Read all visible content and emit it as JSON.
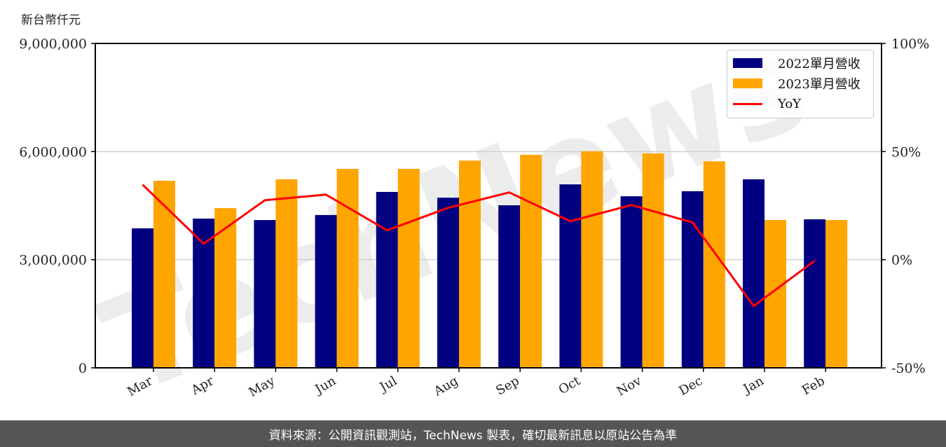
{
  "unit_label": "新台幣仟元",
  "footer": {
    "text": "資料來源：公開資訊觀測站，TechNews 製表，確切最新訊息以原站公告為準"
  },
  "watermark": "TechNews",
  "legend": [
    {
      "label": "2022單月營收",
      "color": "#000080",
      "kind": "bar"
    },
    {
      "label": "2023單月營收",
      "color": "#FFA500",
      "kind": "bar"
    },
    {
      "label": "YoY",
      "color": "#FF0000",
      "kind": "line"
    }
  ],
  "chart_data": {
    "type": "bar",
    "title": "",
    "xlabel": "",
    "ylabel": "新台幣仟元",
    "y2label": "",
    "categories": [
      "Mar",
      "Apr",
      "May",
      "Jun",
      "Jul",
      "Aug",
      "Sep",
      "Oct",
      "Nov",
      "Dec",
      "Jan",
      "Feb"
    ],
    "series": [
      {
        "name": "2022單月營收",
        "type": "bar",
        "axis": "left",
        "color": "#000080",
        "values": [
          3870000,
          4140000,
          4100000,
          4240000,
          4880000,
          4720000,
          4510000,
          5090000,
          4760000,
          4900000,
          5230000,
          4120000
        ]
      },
      {
        "name": "2023單月營收",
        "type": "bar",
        "axis": "left",
        "color": "#FFA500",
        "values": [
          5190000,
          4430000,
          5230000,
          5520000,
          5520000,
          5750000,
          5910000,
          6010000,
          5950000,
          5730000,
          4100000,
          4100000
        ]
      },
      {
        "name": "YoY",
        "type": "line",
        "axis": "right",
        "color": "#FF0000",
        "values": [
          34.7,
          7.4,
          27.5,
          30.1,
          13.6,
          24.0,
          31.1,
          17.8,
          25.3,
          17.2,
          -21.4,
          -0.5
        ]
      }
    ],
    "ylim": [
      0,
      9000000
    ],
    "y2lim": [
      -50,
      100
    ],
    "yticks": [
      0,
      3000000,
      6000000,
      9000000
    ],
    "ytick_labels": [
      "0",
      "3,000,000",
      "6,000,000",
      "9,000,000"
    ],
    "y2ticks": [
      -50,
      0,
      50,
      100
    ],
    "y2tick_labels": [
      "-50%",
      "0%",
      "50%",
      "100%"
    ],
    "grid": "horizontal",
    "legend_position": "upper right"
  }
}
